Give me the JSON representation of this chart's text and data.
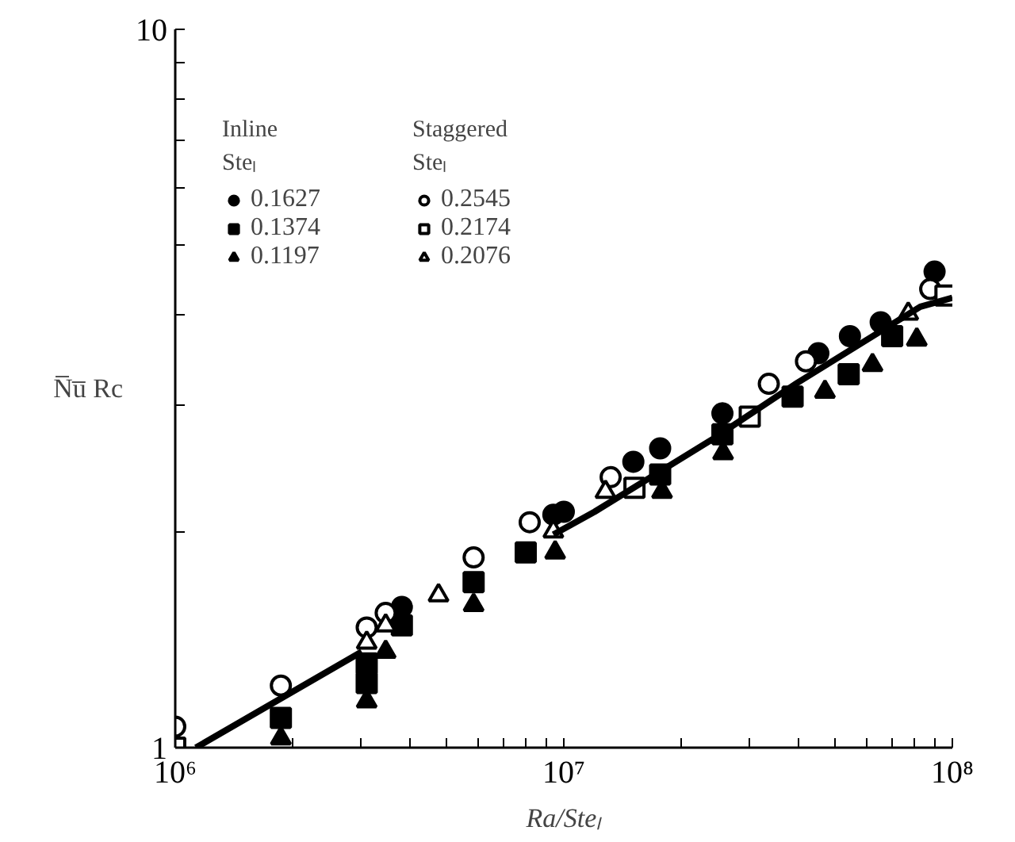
{
  "chart_data": {
    "type": "scatter",
    "xlabel": "Ra/Steₗ",
    "ylabel": "N̅u̅ Rc",
    "legend": "top left",
    "log": "xy",
    "grid": false,
    "annotations": [
      "Inline\nSteₗ",
      "Staggered\nSteₗ"
    ],
    "xlim": [
      1000000,
      100000000
    ],
    "ylim": [
      1,
      10
    ],
    "xticks": [
      {
        "value": 1000000,
        "label": "10⁶"
      },
      {
        "value": 2000000,
        "label": null
      },
      {
        "value": 3000000,
        "label": null
      },
      {
        "value": 4000000,
        "label": null
      },
      {
        "value": 5000000,
        "label": null
      },
      {
        "value": 6000000,
        "label": null
      },
      {
        "value": 7000000,
        "label": null
      },
      {
        "value": 8000000,
        "label": null
      },
      {
        "value": 9000000,
        "label": null
      },
      {
        "value": 10000000,
        "label": "10⁷"
      },
      {
        "value": 20000000,
        "label": null
      },
      {
        "value": 30000000,
        "label": null
      },
      {
        "value": 40000000,
        "label": null
      },
      {
        "value": 50000000,
        "label": null
      },
      {
        "value": 60000000,
        "label": null
      },
      {
        "value": 70000000,
        "label": null
      },
      {
        "value": 80000000,
        "label": null
      },
      {
        "value": 90000000,
        "label": null
      },
      {
        "value": 100000000,
        "label": "10⁸"
      }
    ],
    "yticks": [
      1,
      {
        "value": 2,
        "label": null
      },
      {
        "value": 3,
        "label": null
      },
      {
        "value": 4,
        "label": null
      },
      {
        "value": 5,
        "label": null
      },
      {
        "value": 6,
        "label": null
      },
      {
        "value": 7,
        "label": null
      },
      {
        "value": 8,
        "label": null
      },
      {
        "value": 9,
        "label": null
      },
      10
    ],
    "series": [
      {
        "name": "0.1627",
        "color": "#000000",
        "marker": "circle",
        "x": [
          3830000,
          9400000,
          10000000,
          15100000,
          17700000,
          25600000,
          45200000,
          54500000,
          65400000,
          90000000
        ],
        "values": [
          1.57,
          2.11,
          2.13,
          2.5,
          2.61,
          2.92,
          3.54,
          3.74,
          3.91,
          4.6
        ]
      },
      {
        "name": "0.1374",
        "color": "#000000",
        "marker": "square",
        "x": [
          1870000,
          3110000,
          3110000,
          3830000,
          5860000,
          7980000,
          17700000,
          25600000,
          38800000,
          54100000,
          70000000
        ],
        "values": [
          1.1,
          1.31,
          1.23,
          1.48,
          1.7,
          1.87,
          2.4,
          2.73,
          3.08,
          3.31,
          3.74
        ]
      },
      {
        "name": "0.1197",
        "color": "#000000",
        "marker": "triangle",
        "x": [
          1870000,
          3110000,
          3480000,
          5860000,
          9500000,
          17900000,
          25700000,
          47000000,
          62300000,
          81000000
        ],
        "values": [
          1.03,
          1.16,
          1.36,
          1.58,
          1.87,
          2.27,
          2.57,
          3.13,
          3.41,
          3.7
        ]
      },
      {
        "name": "0.2545",
        "color": "#ffffff",
        "marker": "circle",
        "x": [
          1000000,
          1870000,
          3110000,
          3480000,
          5860000,
          8170000,
          13200000,
          33700000,
          42000000,
          87700000
        ],
        "values": [
          1.07,
          1.22,
          1.47,
          1.54,
          1.84,
          2.06,
          2.38,
          3.21,
          3.45,
          4.35
        ]
      },
      {
        "name": "0.2174",
        "color": "#ffffff",
        "marker": "square",
        "x": [
          1000000,
          15200000,
          30100000,
          96000000
        ],
        "values": [
          1.0,
          2.3,
          2.89,
          4.26
        ]
      },
      {
        "name": "0.2076",
        "color": "#ffffff",
        "marker": "triangle",
        "x": [
          3110000,
          3480000,
          4760000,
          9400000,
          12800000,
          77000000
        ],
        "values": [
          1.4,
          1.48,
          1.63,
          2.0,
          2.27,
          4.02
        ]
      },
      {
        "type": "line",
        "color": "#000000",
        "line_style": "solid",
        "x": [
          1130000,
          3020000,
          5000000,
          9400000,
          12000000,
          24200000,
          39900000,
          82700000,
          100000000
        ],
        "values": [
          1.0,
          1.36,
          null,
          1.98,
          2.13,
          2.69,
          3.22,
          4.11,
          4.23
        ]
      }
    ]
  }
}
